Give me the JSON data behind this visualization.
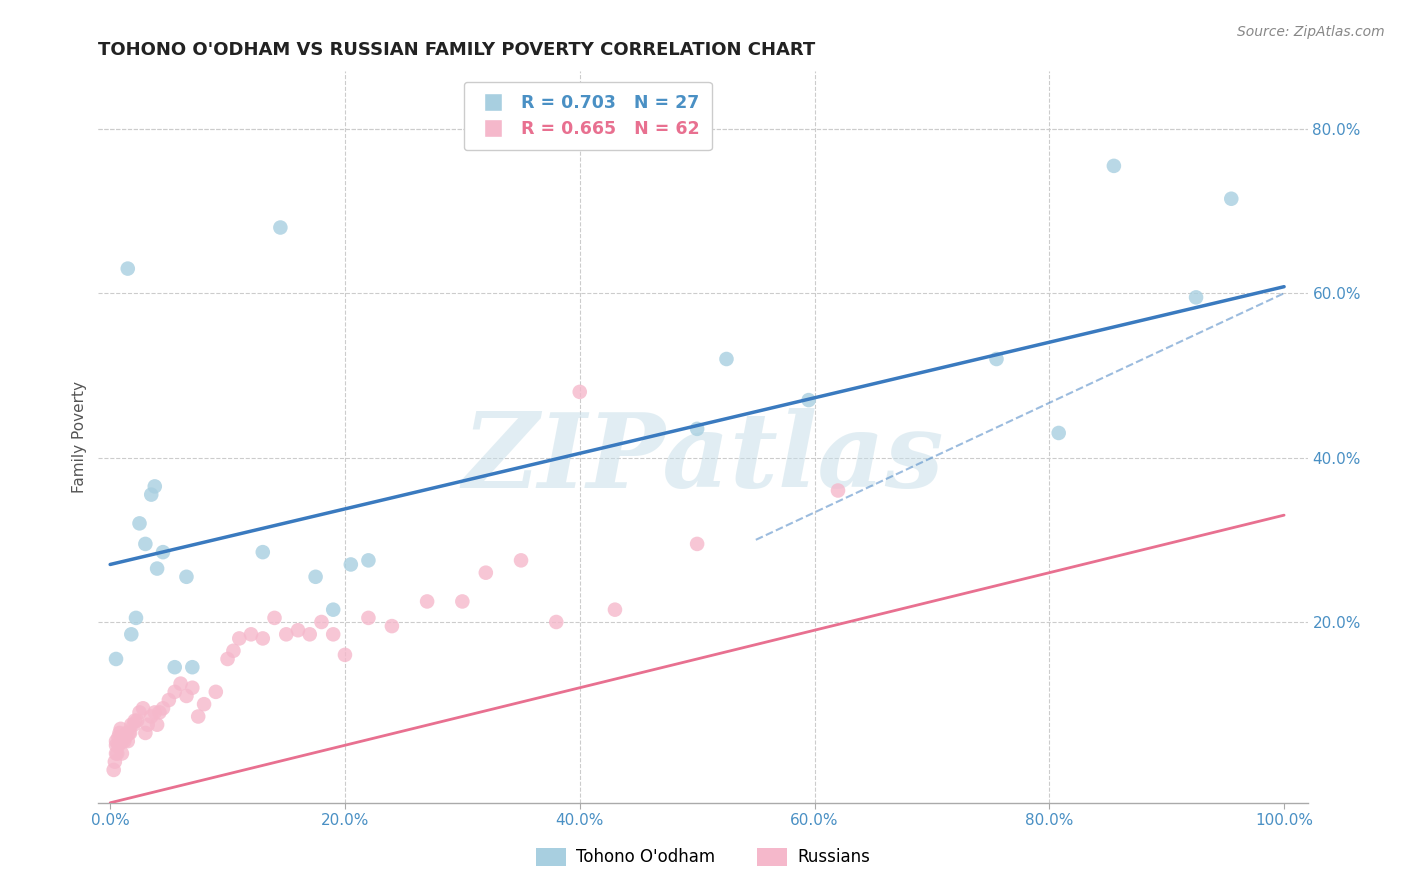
{
  "title": "TOHONO O'ODHAM VS RUSSIAN FAMILY POVERTY CORRELATION CHART",
  "source": "Source: ZipAtlas.com",
  "ylabel": "Family Poverty",
  "xlim": [
    -0.01,
    1.02
  ],
  "ylim": [
    -0.02,
    0.87
  ],
  "xticks": [
    0.0,
    0.2,
    0.4,
    0.6,
    0.8,
    1.0
  ],
  "xtick_labels": [
    "0.0%",
    "",
    "40.0%",
    "",
    "80.0%",
    "100.0%"
  ],
  "xtick_labels_full": [
    "0.0%",
    "20.0%",
    "40.0%",
    "60.0%",
    "80.0%",
    "100.0%"
  ],
  "ytick_labels": [
    "20.0%",
    "40.0%",
    "60.0%",
    "80.0%"
  ],
  "yticks": [
    0.2,
    0.4,
    0.6,
    0.8
  ],
  "legend_r1": "R = 0.703",
  "legend_n1": "N = 27",
  "legend_r2": "R = 0.665",
  "legend_n2": "N = 62",
  "blue_scatter_color": "#a8cfe0",
  "pink_scatter_color": "#f5b8cb",
  "blue_line_color": "#3a7abf",
  "pink_line_color": "#e87090",
  "blue_text_color": "#4a90c4",
  "pink_text_color": "#e87090",
  "tick_label_color": "#4a90c4",
  "watermark_color": "#c5dde8",
  "blue_line_x0": 0.0,
  "blue_line_y0": 0.27,
  "blue_line_x1": 1.0,
  "blue_line_y1": 0.608,
  "pink_line_x0": 0.0,
  "pink_line_y0": -0.02,
  "pink_line_x1": 1.0,
  "pink_line_y1": 0.33,
  "tohono_x": [
    0.005,
    0.015,
    0.018,
    0.022,
    0.025,
    0.03,
    0.035,
    0.038,
    0.04,
    0.045,
    0.055,
    0.065,
    0.07,
    0.13,
    0.145,
    0.175,
    0.19,
    0.205,
    0.22,
    0.5,
    0.525,
    0.595,
    0.755,
    0.808,
    0.855,
    0.925,
    0.955
  ],
  "tohono_y": [
    0.155,
    0.63,
    0.185,
    0.205,
    0.32,
    0.295,
    0.355,
    0.365,
    0.265,
    0.285,
    0.145,
    0.255,
    0.145,
    0.285,
    0.68,
    0.255,
    0.215,
    0.27,
    0.275,
    0.435,
    0.52,
    0.47,
    0.52,
    0.43,
    0.755,
    0.595,
    0.715
  ],
  "russian_x": [
    0.003,
    0.004,
    0.005,
    0.005,
    0.005,
    0.006,
    0.007,
    0.007,
    0.008,
    0.009,
    0.01,
    0.01,
    0.012,
    0.013,
    0.014,
    0.015,
    0.016,
    0.017,
    0.018,
    0.02,
    0.021,
    0.023,
    0.025,
    0.028,
    0.03,
    0.032,
    0.035,
    0.038,
    0.04,
    0.042,
    0.045,
    0.05,
    0.055,
    0.06,
    0.065,
    0.07,
    0.075,
    0.08,
    0.09,
    0.1,
    0.105,
    0.11,
    0.12,
    0.13,
    0.14,
    0.15,
    0.16,
    0.17,
    0.18,
    0.19,
    0.2,
    0.22,
    0.24,
    0.27,
    0.3,
    0.32,
    0.35,
    0.38,
    0.4,
    0.43,
    0.5,
    0.62
  ],
  "russian_y": [
    0.02,
    0.03,
    0.04,
    0.05,
    0.055,
    0.04,
    0.05,
    0.06,
    0.065,
    0.07,
    0.04,
    0.055,
    0.055,
    0.06,
    0.065,
    0.055,
    0.065,
    0.065,
    0.075,
    0.075,
    0.08,
    0.08,
    0.09,
    0.095,
    0.065,
    0.075,
    0.085,
    0.09,
    0.075,
    0.09,
    0.095,
    0.105,
    0.115,
    0.125,
    0.11,
    0.12,
    0.085,
    0.1,
    0.115,
    0.155,
    0.165,
    0.18,
    0.185,
    0.18,
    0.205,
    0.185,
    0.19,
    0.185,
    0.2,
    0.185,
    0.16,
    0.205,
    0.195,
    0.225,
    0.225,
    0.26,
    0.275,
    0.2,
    0.48,
    0.215,
    0.295,
    0.36
  ]
}
